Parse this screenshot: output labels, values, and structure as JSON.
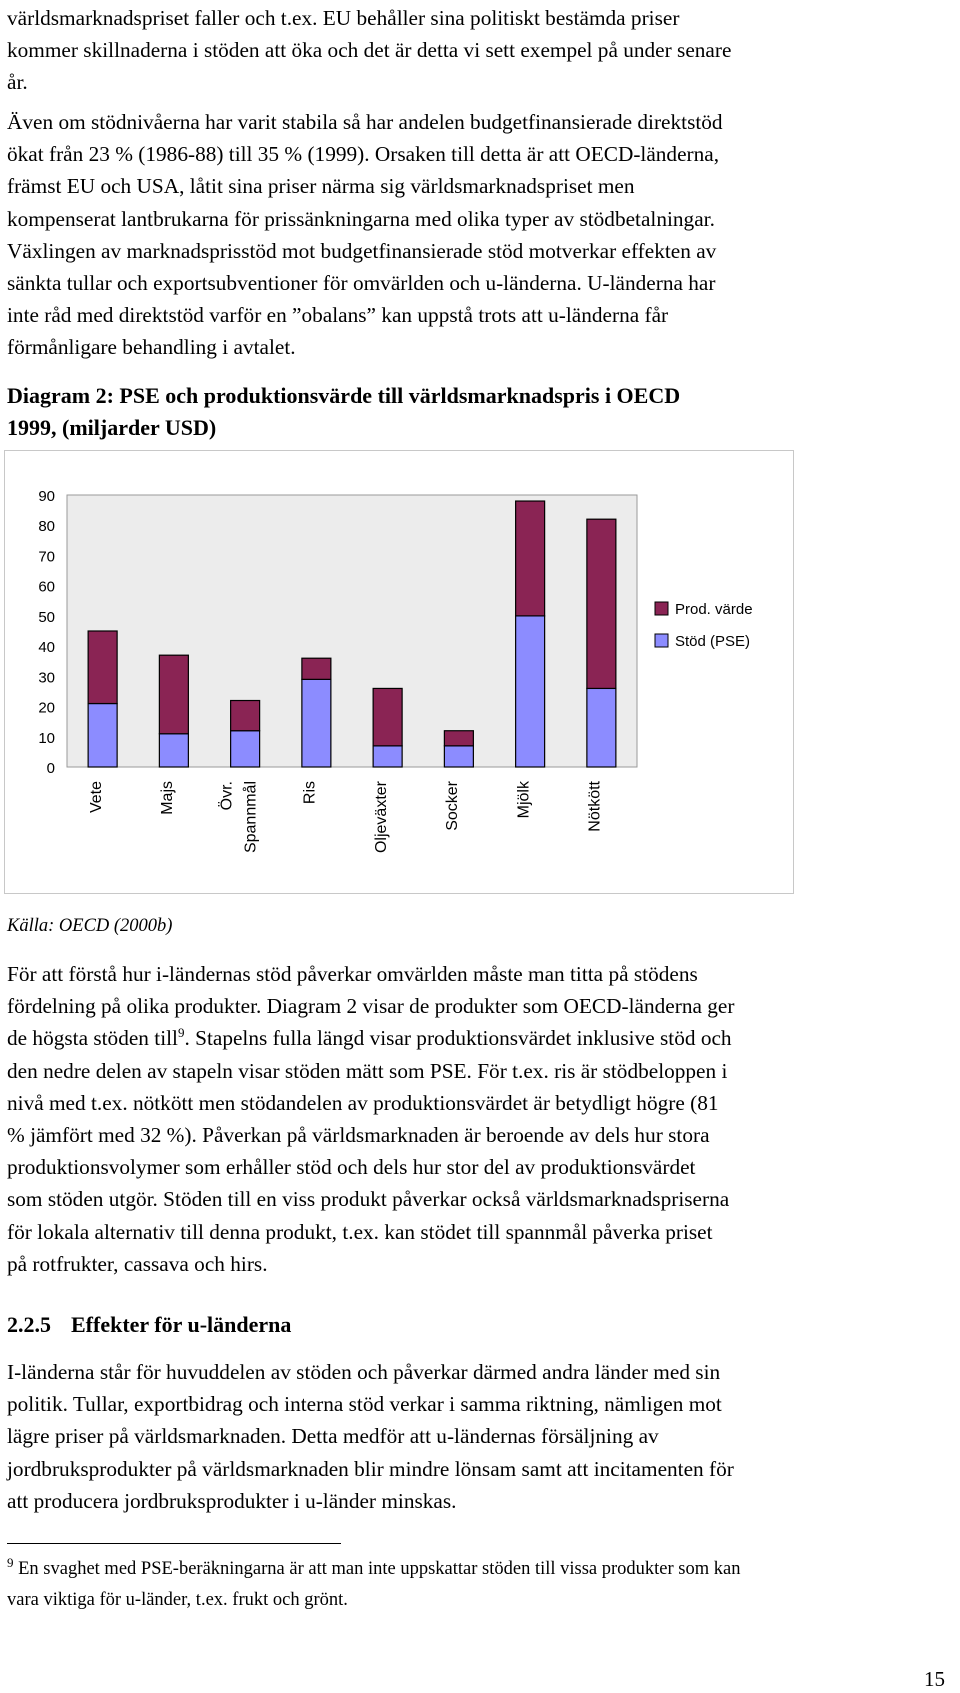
{
  "intro_lines": [
    "världsmarknadspriset faller och t.ex. EU behåller sina politiskt bestämda priser",
    "kommer skillnaderna i stöden att öka och det är detta vi sett exempel på under senare",
    "år."
  ],
  "paragraph1_lines": [
    "Även om stödnivåerna har varit stabila så har andelen budgetfinansierade direktstöd",
    "ökat från 23 % (1986-88) till 35 % (1999). Orsaken till detta är att OECD-länderna,",
    "främst EU och USA, låtit sina priser närma sig världsmarknadspriset men",
    "kompenserat lantbrukarna för prissänkningarna med olika typer av stödbetalningar.",
    "Växlingen av marknadsprisstöd mot budgetfinansierade stöd motverkar effekten av",
    "sänkta tullar och exportsubventioner för omvärlden och u-länderna. U-länderna har",
    "inte råd med direktstöd varför en ”obalans” kan uppstå trots att u-länderna får",
    "förmånligare behandling i avtalet."
  ],
  "diagram_caption_lines": [
    "Diagram 2: PSE och produktionsvärde till världsmarknadspris i OECD",
    "1999, (miljarder USD)"
  ],
  "chart_data": {
    "type": "bar",
    "stacked": true,
    "categories": [
      "Vete",
      "Majs",
      "Övr. Spannmål",
      "Ris",
      "Oljeväxter",
      "Socker",
      "Mjölk",
      "Nötkött"
    ],
    "category_label_lines": [
      [
        "Vete"
      ],
      [
        "Majs"
      ],
      [
        "Övr.",
        "Spannmål"
      ],
      [
        "Ris"
      ],
      [
        "Oljeväxter"
      ],
      [
        "Socker"
      ],
      [
        "Mjölk"
      ],
      [
        "Nötkött"
      ]
    ],
    "series": [
      {
        "name": "Stöd (PSE)",
        "color": "#8c8cff",
        "values": [
          21,
          11,
          12,
          29,
          7,
          7,
          50,
          26
        ]
      },
      {
        "name": "Prod. värde",
        "color": "#8a2454",
        "values": [
          24,
          26,
          10,
          7,
          19,
          5,
          38,
          56
        ]
      }
    ],
    "legend_order": [
      "Prod. värde",
      "Stöd (PSE)"
    ],
    "yticks": [
      "90",
      "80",
      "70",
      "60",
      "50",
      "40",
      "30",
      "20",
      "10",
      "0"
    ],
    "ylim": [
      0,
      90
    ],
    "grid": false,
    "legend_position": "right",
    "plot_background": "#ececec"
  },
  "source_text": "Källa: OECD (2000b)",
  "paragraph2_lines": [
    "För att förstå hur i-ländernas stöd påverkar omvärlden måste man titta på stödens",
    "fördelning på olika produkter. Diagram 2 visar de produkter som OECD-länderna ger",
    [
      "de högsta stöden till",
      "9",
      ". Stapelns fulla längd visar produktionsvärdet inklusive stöd och"
    ],
    "den nedre delen av stapeln visar stöden mätt som PSE. För t.ex. ris är stödbeloppen i",
    "nivå med t.ex. nötkött men stödandelen av produktionsvärdet är betydligt högre (81",
    "% jämfört med 32 %). Påverkan på världsmarknaden är beroende av dels hur stora",
    "produktionsvolymer som erhåller stöd och dels hur stor del av produktionsvärdet",
    "som stöden utgör. Stöden till en viss produkt påverkar också världsmarknadspriserna",
    "för lokala alternativ till denna produkt, t.ex. kan stödet till spannmål påverka priset",
    "på rotfrukter, cassava och hirs."
  ],
  "section": {
    "number": "2.2.5",
    "title": "Effekter för u-länderna"
  },
  "paragraph3_lines": [
    "I-länderna står för huvuddelen av stöden och påverkar därmed andra länder med sin",
    "politik. Tullar, exportbidrag och interna stöd verkar i samma riktning, nämligen mot",
    "lägre priser på världsmarknaden. Detta medför att u-ländernas försäljning av",
    "jordbruksprodukter på världsmarknaden blir mindre lönsam samt att incitamenten för",
    "att producera jordbruksprodukter i u-länder minskas."
  ],
  "footnote": {
    "marker": "9",
    "lines": [
      "En svaghet med PSE-beräkningarna är att man inte uppskattar stöden till vissa produkter som kan",
      "vara viktiga för u-länder, t.ex. frukt och grönt."
    ]
  },
  "page_number": "15"
}
